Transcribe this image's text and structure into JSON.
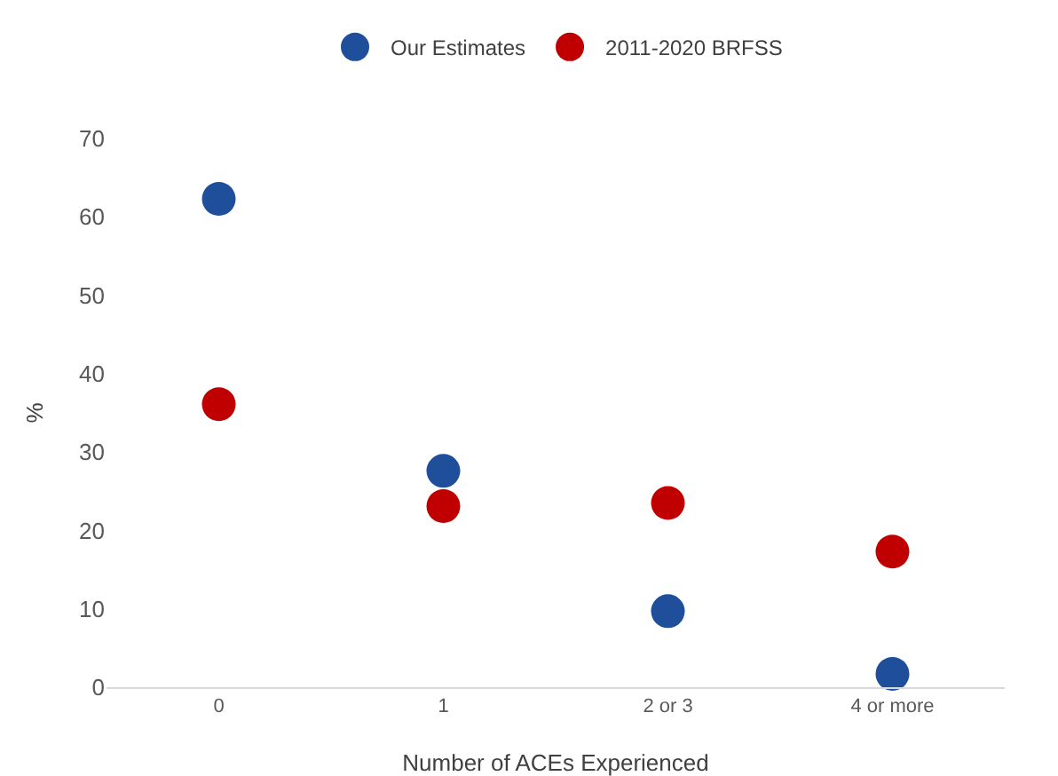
{
  "chart_data": {
    "type": "scatter",
    "xlabel": "Number of ACEs Experienced",
    "ylabel": "%",
    "categories": [
      "0",
      "1",
      "2 or 3",
      "4 or more"
    ],
    "series": [
      {
        "name": "Our Estimates",
        "color": "#1f4e9a",
        "values": [
          62.3,
          27.6,
          9.7,
          1.7
        ]
      },
      {
        "name": "2011-2020 BRFSS",
        "color": "#c00000",
        "values": [
          36.1,
          23.1,
          23.5,
          17.3
        ]
      }
    ],
    "ylim": [
      0,
      70
    ],
    "yticks": [
      0,
      10,
      20,
      30,
      40,
      50,
      60,
      70
    ],
    "grid": false,
    "legend": "top",
    "marker": "circle"
  }
}
